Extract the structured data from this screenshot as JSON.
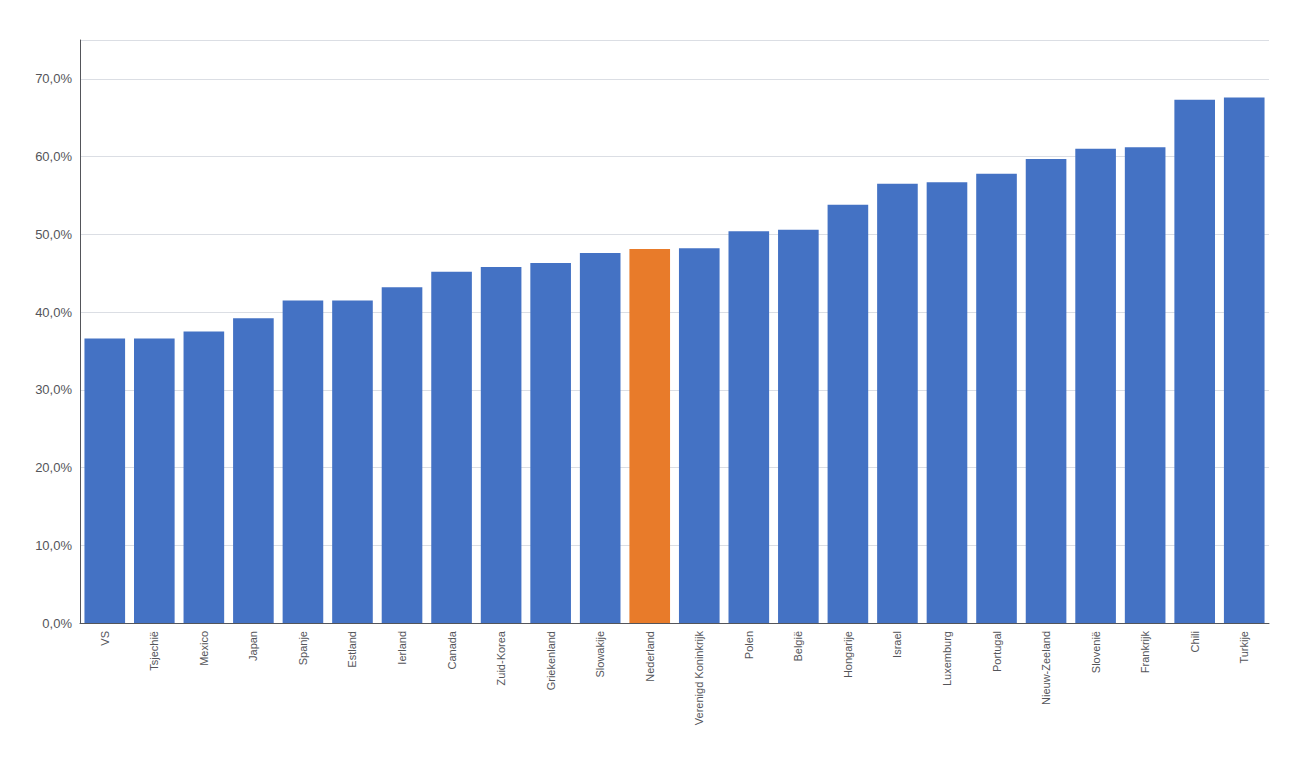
{
  "chart_data": {
    "type": "bar",
    "categories": [
      "VS",
      "Tsjechië",
      "Mexico",
      "Japan",
      "Spanje",
      "Estland",
      "Ierland",
      "Canada",
      "Zuid-Korea",
      "Griekenland",
      "Slowakije",
      "Nederland",
      "Verenigd Koninkrijk",
      "Polen",
      "België",
      "Hongarije",
      "Israel",
      "Luxemburg",
      "Portugal",
      "Nieuw-Zeeland",
      "Slovenië",
      "Frankrijk",
      "Chili",
      "Turkije"
    ],
    "values": [
      0.366,
      0.366,
      0.375,
      0.392,
      0.415,
      0.415,
      0.432,
      0.452,
      0.458,
      0.463,
      0.476,
      0.481,
      0.482,
      0.504,
      0.506,
      0.538,
      0.565,
      0.567,
      0.578,
      0.597,
      0.61,
      0.612,
      0.673,
      0.676
    ],
    "colors": [
      "#4472C4",
      "#4472C4",
      "#4472C4",
      "#4472C4",
      "#4472C4",
      "#4472C4",
      "#4472C4",
      "#4472C4",
      "#4472C4",
      "#4472C4",
      "#4472C4",
      "#E87B2A",
      "#4472C4",
      "#4472C4",
      "#4472C4",
      "#4472C4",
      "#4472C4",
      "#4472C4",
      "#4472C4",
      "#4472C4",
      "#4472C4",
      "#4472C4",
      "#4472C4",
      "#4472C4"
    ],
    "ylim": [
      0,
      0.75
    ],
    "yticks": [
      {
        "value": 0.0,
        "label": "0,0%"
      },
      {
        "value": 0.1,
        "label": "10,0%"
      },
      {
        "value": 0.2,
        "label": "20,0%"
      },
      {
        "value": 0.3,
        "label": "30,0%"
      },
      {
        "value": 0.4,
        "label": "40,0%"
      },
      {
        "value": 0.5,
        "label": "50,0%"
      },
      {
        "value": 0.6,
        "label": "60,0%"
      },
      {
        "value": 0.7,
        "label": "70,0%"
      }
    ],
    "grid": true
  }
}
